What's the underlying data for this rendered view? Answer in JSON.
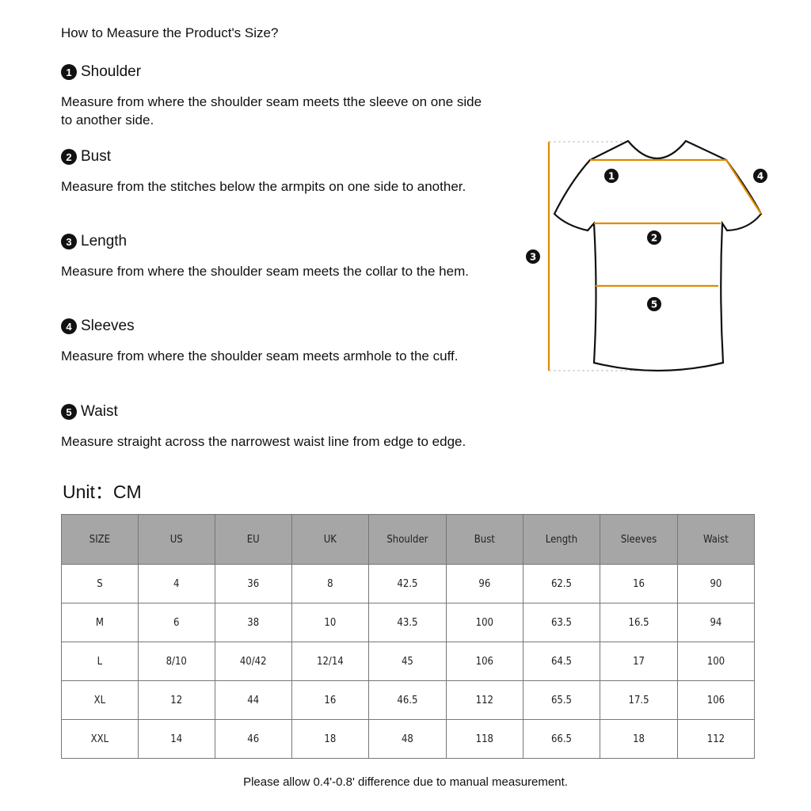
{
  "title": "How to Measure the Product's Size?",
  "sections": [
    {
      "num": "1",
      "heading": "Shoulder",
      "text": "Measure from where the shoulder seam meets tthe sleeve on one side to another side."
    },
    {
      "num": "2",
      "heading": "Bust",
      "text": "Measure from the stitches below the armpits on one side to another."
    },
    {
      "num": "3",
      "heading": "Length",
      "text": "Measure from where the shoulder seam meets the collar to the hem."
    },
    {
      "num": "4",
      "heading": "Sleeves",
      "text": "Measure from where the shoulder seam meets armhole to the cuff."
    },
    {
      "num": "5",
      "heading": "Waist",
      "text": "Measure straight across the narrowest waist line from edge to edge."
    }
  ],
  "diagram": {
    "labels": [
      "1",
      "2",
      "3",
      "4",
      "5"
    ],
    "accent_color": "#e08a00"
  },
  "unit": "Unit：CM",
  "table": {
    "headers": [
      "SIZE",
      "US",
      "EU",
      "UK",
      "Shoulder",
      "Bust",
      "Length",
      "Sleeves",
      "Waist"
    ],
    "rows": [
      [
        "S",
        "4",
        "36",
        "8",
        "42.5",
        "96",
        "62.5",
        "16",
        "90"
      ],
      [
        "M",
        "6",
        "38",
        "10",
        "43.5",
        "100",
        "63.5",
        "16.5",
        "94"
      ],
      [
        "L",
        "8/10",
        "40/42",
        "12/14",
        "45",
        "106",
        "64.5",
        "17",
        "100"
      ],
      [
        "XL",
        "12",
        "44",
        "16",
        "46.5",
        "112",
        "65.5",
        "17.5",
        "106"
      ],
      [
        "XXL",
        "14",
        "46",
        "18",
        "48",
        "118",
        "66.5",
        "18",
        "112"
      ]
    ]
  },
  "note": "Please allow 0.4'-0.8' difference due to manual measurement."
}
